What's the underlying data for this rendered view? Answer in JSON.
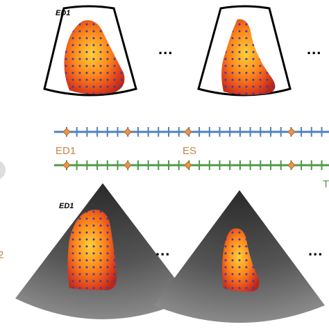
{
  "top_panel_label": "ED1",
  "top_ellipses": [
    "...",
    "..."
  ],
  "timeline_labels": {
    "start": "ED1",
    "mid": "ES",
    "end": "T"
  },
  "side_label": "2",
  "bottom_panel_label": "ED1",
  "bottom_ellipses": [
    "...",
    "..."
  ]
}
